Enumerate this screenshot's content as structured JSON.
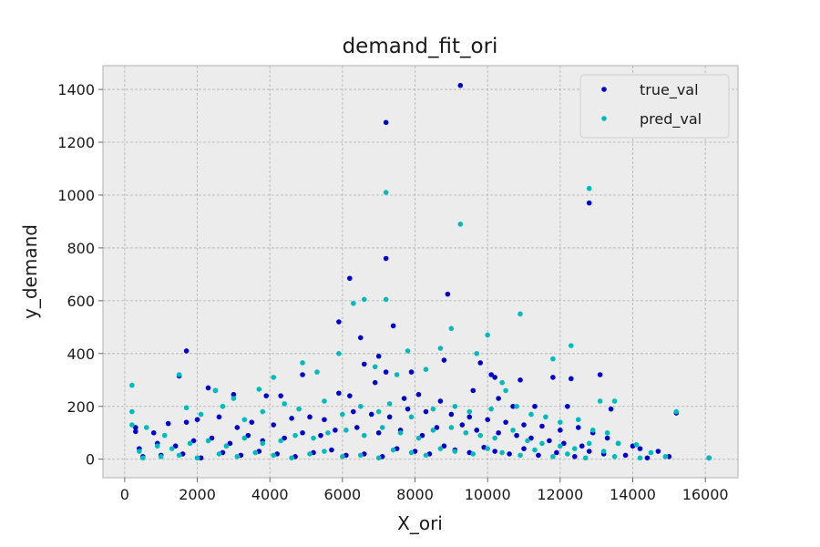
{
  "chart_data": {
    "type": "scatter",
    "title": "demand_fit_ori",
    "xlabel": "X_ori",
    "ylabel": "y_demand",
    "xlim": [
      -600,
      16900
    ],
    "ylim": [
      -70,
      1490
    ],
    "xticks": [
      0,
      2000,
      4000,
      6000,
      8000,
      10000,
      12000,
      14000,
      16000
    ],
    "xtick_labels": [
      "0",
      "2000",
      "4000",
      "6000",
      "8000",
      "10000",
      "12000",
      "14000",
      "16000"
    ],
    "yticks": [
      0,
      200,
      400,
      600,
      800,
      1000,
      1200,
      1400
    ],
    "ytick_labels": [
      "0",
      "200",
      "400",
      "600",
      "800",
      "1000",
      "1200",
      "1400"
    ],
    "grid": true,
    "legend_position": "top-right",
    "series": [
      {
        "name": "true_val",
        "color": "#0000cc",
        "points": [
          [
            9250,
            1415
          ],
          [
            7200,
            1275
          ],
          [
            12800,
            970
          ],
          [
            7200,
            760
          ],
          [
            6200,
            685
          ],
          [
            8900,
            625
          ],
          [
            5900,
            520
          ],
          [
            7400,
            505
          ],
          [
            6500,
            460
          ],
          [
            1700,
            410
          ],
          [
            7000,
            390
          ],
          [
            8800,
            375
          ],
          [
            9800,
            365
          ],
          [
            6600,
            360
          ],
          [
            7200,
            330
          ],
          [
            13100,
            320
          ],
          [
            4900,
            320
          ],
          [
            10100,
            320
          ],
          [
            10200,
            310
          ],
          [
            11800,
            310
          ],
          [
            12300,
            305
          ],
          [
            10900,
            300
          ],
          [
            1500,
            315
          ],
          [
            7900,
            330
          ],
          [
            6900,
            290
          ],
          [
            3000,
            245
          ],
          [
            2300,
            270
          ],
          [
            2500,
            260
          ],
          [
            3900,
            240
          ],
          [
            4300,
            240
          ],
          [
            5900,
            250
          ],
          [
            6200,
            240
          ],
          [
            7700,
            230
          ],
          [
            8100,
            245
          ],
          [
            8700,
            220
          ],
          [
            9600,
            260
          ],
          [
            10300,
            230
          ],
          [
            10700,
            200
          ],
          [
            11300,
            200
          ],
          [
            12200,
            200
          ],
          [
            13400,
            190
          ],
          [
            15200,
            175
          ],
          [
            300,
            120
          ],
          [
            300,
            105
          ],
          [
            800,
            100
          ],
          [
            1200,
            135
          ],
          [
            1700,
            140
          ],
          [
            2000,
            150
          ],
          [
            2600,
            160
          ],
          [
            3100,
            120
          ],
          [
            3500,
            140
          ],
          [
            4100,
            130
          ],
          [
            4600,
            155
          ],
          [
            5100,
            160
          ],
          [
            5500,
            150
          ],
          [
            6300,
            180
          ],
          [
            6800,
            170
          ],
          [
            7300,
            160
          ],
          [
            7800,
            190
          ],
          [
            8300,
            180
          ],
          [
            9000,
            170
          ],
          [
            9500,
            160
          ],
          [
            10000,
            150
          ],
          [
            10500,
            140
          ],
          [
            11000,
            130
          ],
          [
            11500,
            125
          ],
          [
            12000,
            110
          ],
          [
            12500,
            120
          ],
          [
            12900,
            100
          ],
          [
            13300,
            80
          ],
          [
            13600,
            60
          ],
          [
            14000,
            50
          ],
          [
            14200,
            40
          ],
          [
            14700,
            30
          ],
          [
            15000,
            10
          ],
          [
            16100,
            5
          ],
          [
            400,
            40
          ],
          [
            900,
            60
          ],
          [
            1400,
            50
          ],
          [
            1900,
            70
          ],
          [
            2400,
            80
          ],
          [
            2900,
            60
          ],
          [
            3400,
            90
          ],
          [
            3800,
            70
          ],
          [
            4400,
            80
          ],
          [
            4900,
            100
          ],
          [
            5400,
            90
          ],
          [
            5800,
            110
          ],
          [
            6400,
            120
          ],
          [
            7000,
            100
          ],
          [
            7600,
            110
          ],
          [
            8200,
            90
          ],
          [
            8600,
            120
          ],
          [
            9300,
            130
          ],
          [
            9700,
            110
          ],
          [
            10300,
            100
          ],
          [
            10800,
            90
          ],
          [
            11200,
            80
          ],
          [
            11700,
            70
          ],
          [
            12100,
            60
          ],
          [
            12600,
            50
          ],
          [
            500,
            10
          ],
          [
            1000,
            15
          ],
          [
            1600,
            20
          ],
          [
            2100,
            5
          ],
          [
            2700,
            25
          ],
          [
            3200,
            15
          ],
          [
            3700,
            30
          ],
          [
            4200,
            20
          ],
          [
            4700,
            10
          ],
          [
            5200,
            25
          ],
          [
            5700,
            35
          ],
          [
            6100,
            15
          ],
          [
            6600,
            20
          ],
          [
            7100,
            10
          ],
          [
            7500,
            40
          ],
          [
            8000,
            30
          ],
          [
            8400,
            20
          ],
          [
            8800,
            50
          ],
          [
            9100,
            35
          ],
          [
            9500,
            25
          ],
          [
            9900,
            45
          ],
          [
            10200,
            30
          ],
          [
            10600,
            20
          ],
          [
            11000,
            40
          ],
          [
            11400,
            15
          ],
          [
            11900,
            25
          ],
          [
            12400,
            10
          ],
          [
            12800,
            30
          ],
          [
            13200,
            20
          ],
          [
            13800,
            15
          ],
          [
            14400,
            5
          ]
        ]
      },
      {
        "name": "pred_val",
        "color": "#00bbbb",
        "points": [
          [
            12800,
            1025
          ],
          [
            7200,
            1010
          ],
          [
            9250,
            890
          ],
          [
            6300,
            590
          ],
          [
            6600,
            605
          ],
          [
            7200,
            605
          ],
          [
            10900,
            550
          ],
          [
            9000,
            495
          ],
          [
            10000,
            470
          ],
          [
            12300,
            430
          ],
          [
            8700,
            420
          ],
          [
            7800,
            410
          ],
          [
            5900,
            400
          ],
          [
            9700,
            400
          ],
          [
            4900,
            365
          ],
          [
            1500,
            320
          ],
          [
            200,
            280
          ],
          [
            11800,
            380
          ],
          [
            6900,
            350
          ],
          [
            8300,
            340
          ],
          [
            5300,
            330
          ],
          [
            4100,
            310
          ],
          [
            7500,
            320
          ],
          [
            10400,
            290
          ],
          [
            13100,
            220
          ],
          [
            13500,
            220
          ],
          [
            3700,
            265
          ],
          [
            2500,
            260
          ],
          [
            3000,
            230
          ],
          [
            1700,
            195
          ],
          [
            200,
            180
          ],
          [
            200,
            130
          ],
          [
            600,
            120
          ],
          [
            1100,
            90
          ],
          [
            2100,
            170
          ],
          [
            2700,
            200
          ],
          [
            3300,
            150
          ],
          [
            3800,
            180
          ],
          [
            4400,
            210
          ],
          [
            4800,
            190
          ],
          [
            5500,
            220
          ],
          [
            6000,
            170
          ],
          [
            6500,
            200
          ],
          [
            7000,
            180
          ],
          [
            7300,
            210
          ],
          [
            7900,
            160
          ],
          [
            8500,
            190
          ],
          [
            9100,
            200
          ],
          [
            9500,
            180
          ],
          [
            10100,
            190
          ],
          [
            10500,
            260
          ],
          [
            10800,
            200
          ],
          [
            11200,
            170
          ],
          [
            11600,
            160
          ],
          [
            12000,
            140
          ],
          [
            12500,
            150
          ],
          [
            12900,
            110
          ],
          [
            13300,
            100
          ],
          [
            13600,
            60
          ],
          [
            14100,
            55
          ],
          [
            14500,
            25
          ],
          [
            14900,
            10
          ],
          [
            15200,
            180
          ],
          [
            16100,
            5
          ],
          [
            400,
            30
          ],
          [
            900,
            50
          ],
          [
            1300,
            40
          ],
          [
            1800,
            60
          ],
          [
            2300,
            70
          ],
          [
            2800,
            50
          ],
          [
            3300,
            80
          ],
          [
            3800,
            60
          ],
          [
            4300,
            70
          ],
          [
            4700,
            90
          ],
          [
            5200,
            80
          ],
          [
            5600,
            100
          ],
          [
            6100,
            110
          ],
          [
            6600,
            90
          ],
          [
            7100,
            120
          ],
          [
            7600,
            100
          ],
          [
            8100,
            80
          ],
          [
            8500,
            110
          ],
          [
            9000,
            120
          ],
          [
            9400,
            100
          ],
          [
            9800,
            90
          ],
          [
            10200,
            80
          ],
          [
            10700,
            110
          ],
          [
            11100,
            70
          ],
          [
            11500,
            60
          ],
          [
            12000,
            50
          ],
          [
            12400,
            40
          ],
          [
            12800,
            60
          ],
          [
            13200,
            30
          ],
          [
            500,
            5
          ],
          [
            1000,
            10
          ],
          [
            1500,
            15
          ],
          [
            2000,
            5
          ],
          [
            2600,
            20
          ],
          [
            3100,
            10
          ],
          [
            3600,
            25
          ],
          [
            4100,
            15
          ],
          [
            4600,
            5
          ],
          [
            5100,
            20
          ],
          [
            5500,
            30
          ],
          [
            6000,
            10
          ],
          [
            6500,
            15
          ],
          [
            7000,
            5
          ],
          [
            7400,
            35
          ],
          [
            7900,
            25
          ],
          [
            8300,
            15
          ],
          [
            8700,
            40
          ],
          [
            9100,
            30
          ],
          [
            9600,
            20
          ],
          [
            10000,
            40
          ],
          [
            10400,
            25
          ],
          [
            10900,
            15
          ],
          [
            11300,
            35
          ],
          [
            11800,
            10
          ],
          [
            12200,
            20
          ],
          [
            12700,
            5
          ],
          [
            13500,
            10
          ],
          [
            14200,
            5
          ]
        ]
      }
    ]
  }
}
